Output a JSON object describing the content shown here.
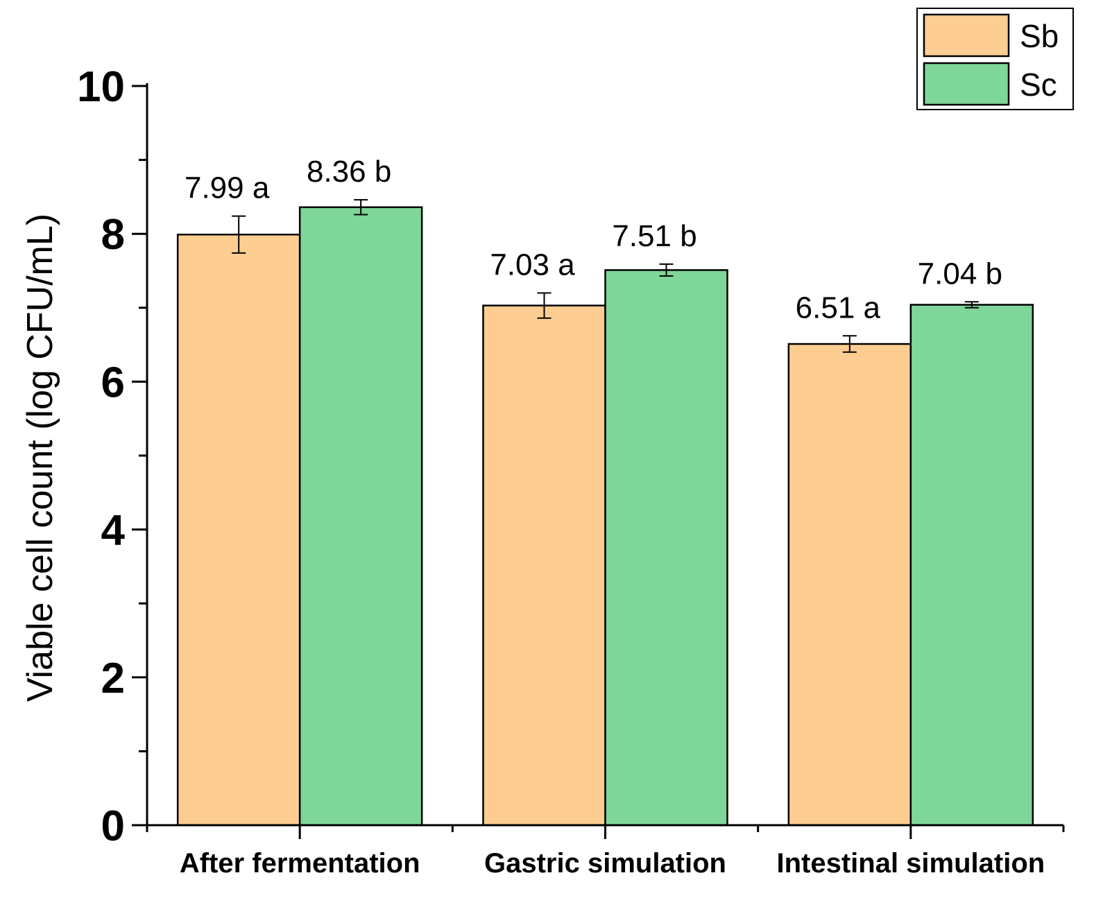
{
  "chart_data": {
    "type": "bar",
    "title": "",
    "xlabel": "",
    "ylabel": "Viable cell count (log CFU/mL)",
    "ylim": [
      0,
      10
    ],
    "yticks": [
      0,
      2,
      4,
      6,
      8,
      10
    ],
    "grid": false,
    "legend_position": "top-right",
    "categories": [
      "After fermentation",
      "Gastric simulation",
      "Intestinal simulation"
    ],
    "series": [
      {
        "name": "Sb",
        "color": "#fdcd91",
        "values": [
          7.99,
          7.03,
          6.51
        ],
        "errors": [
          0.25,
          0.17,
          0.11
        ],
        "labels": [
          "7.99 a",
          "7.03 a",
          "6.51 a"
        ]
      },
      {
        "name": "Sc",
        "color": "#7ed699",
        "values": [
          8.36,
          7.51,
          7.04
        ],
        "errors": [
          0.1,
          0.08,
          0.04
        ],
        "labels": [
          "8.36 b",
          "7.51 b",
          "7.04 b"
        ]
      }
    ]
  }
}
